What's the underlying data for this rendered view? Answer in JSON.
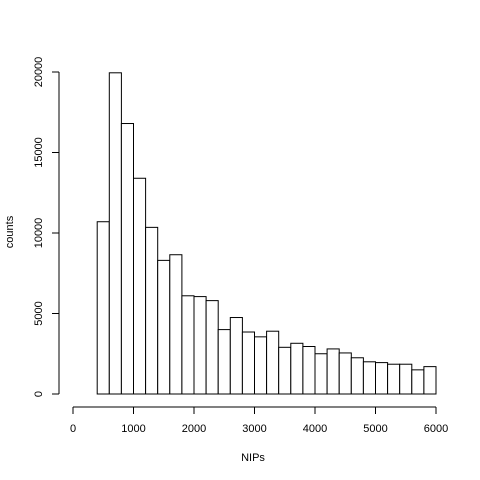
{
  "chart_data": {
    "type": "bar",
    "subtype": "histogram",
    "title": "",
    "xlabel": "NIPs",
    "ylabel": "counts",
    "xlim": [
      0,
      6000
    ],
    "ylim": [
      0,
      20000
    ],
    "x_ticks": [
      0,
      1000,
      2000,
      3000,
      4000,
      5000,
      6000
    ],
    "y_ticks": [
      0,
      5000,
      10000,
      15000,
      20000
    ],
    "grid": false,
    "bin_width": 200,
    "bins": [
      {
        "start": 400,
        "end": 600,
        "count": 10700
      },
      {
        "start": 600,
        "end": 800,
        "count": 19950
      },
      {
        "start": 800,
        "end": 1000,
        "count": 16800
      },
      {
        "start": 1000,
        "end": 1200,
        "count": 13400
      },
      {
        "start": 1200,
        "end": 1400,
        "count": 10350
      },
      {
        "start": 1400,
        "end": 1600,
        "count": 8300
      },
      {
        "start": 1600,
        "end": 1800,
        "count": 8650
      },
      {
        "start": 1800,
        "end": 2000,
        "count": 6100
      },
      {
        "start": 2000,
        "end": 2200,
        "count": 6050
      },
      {
        "start": 2200,
        "end": 2400,
        "count": 5800
      },
      {
        "start": 2400,
        "end": 2600,
        "count": 4000
      },
      {
        "start": 2600,
        "end": 2800,
        "count": 4750
      },
      {
        "start": 2800,
        "end": 3000,
        "count": 3850
      },
      {
        "start": 3000,
        "end": 3200,
        "count": 3550
      },
      {
        "start": 3200,
        "end": 3400,
        "count": 3900
      },
      {
        "start": 3400,
        "end": 3600,
        "count": 2900
      },
      {
        "start": 3600,
        "end": 3800,
        "count": 3150
      },
      {
        "start": 3800,
        "end": 4000,
        "count": 2950
      },
      {
        "start": 4000,
        "end": 4200,
        "count": 2500
      },
      {
        "start": 4200,
        "end": 4400,
        "count": 2800
      },
      {
        "start": 4400,
        "end": 4600,
        "count": 2550
      },
      {
        "start": 4600,
        "end": 4800,
        "count": 2250
      },
      {
        "start": 4800,
        "end": 5000,
        "count": 2000
      },
      {
        "start": 5000,
        "end": 5200,
        "count": 1950
      },
      {
        "start": 5200,
        "end": 5400,
        "count": 1850
      },
      {
        "start": 5400,
        "end": 5600,
        "count": 1850
      },
      {
        "start": 5600,
        "end": 5800,
        "count": 1500
      },
      {
        "start": 5800,
        "end": 6000,
        "count": 1700
      }
    ],
    "colors": {
      "bar_fill": "#ffffff",
      "bar_stroke": "#000000"
    }
  }
}
